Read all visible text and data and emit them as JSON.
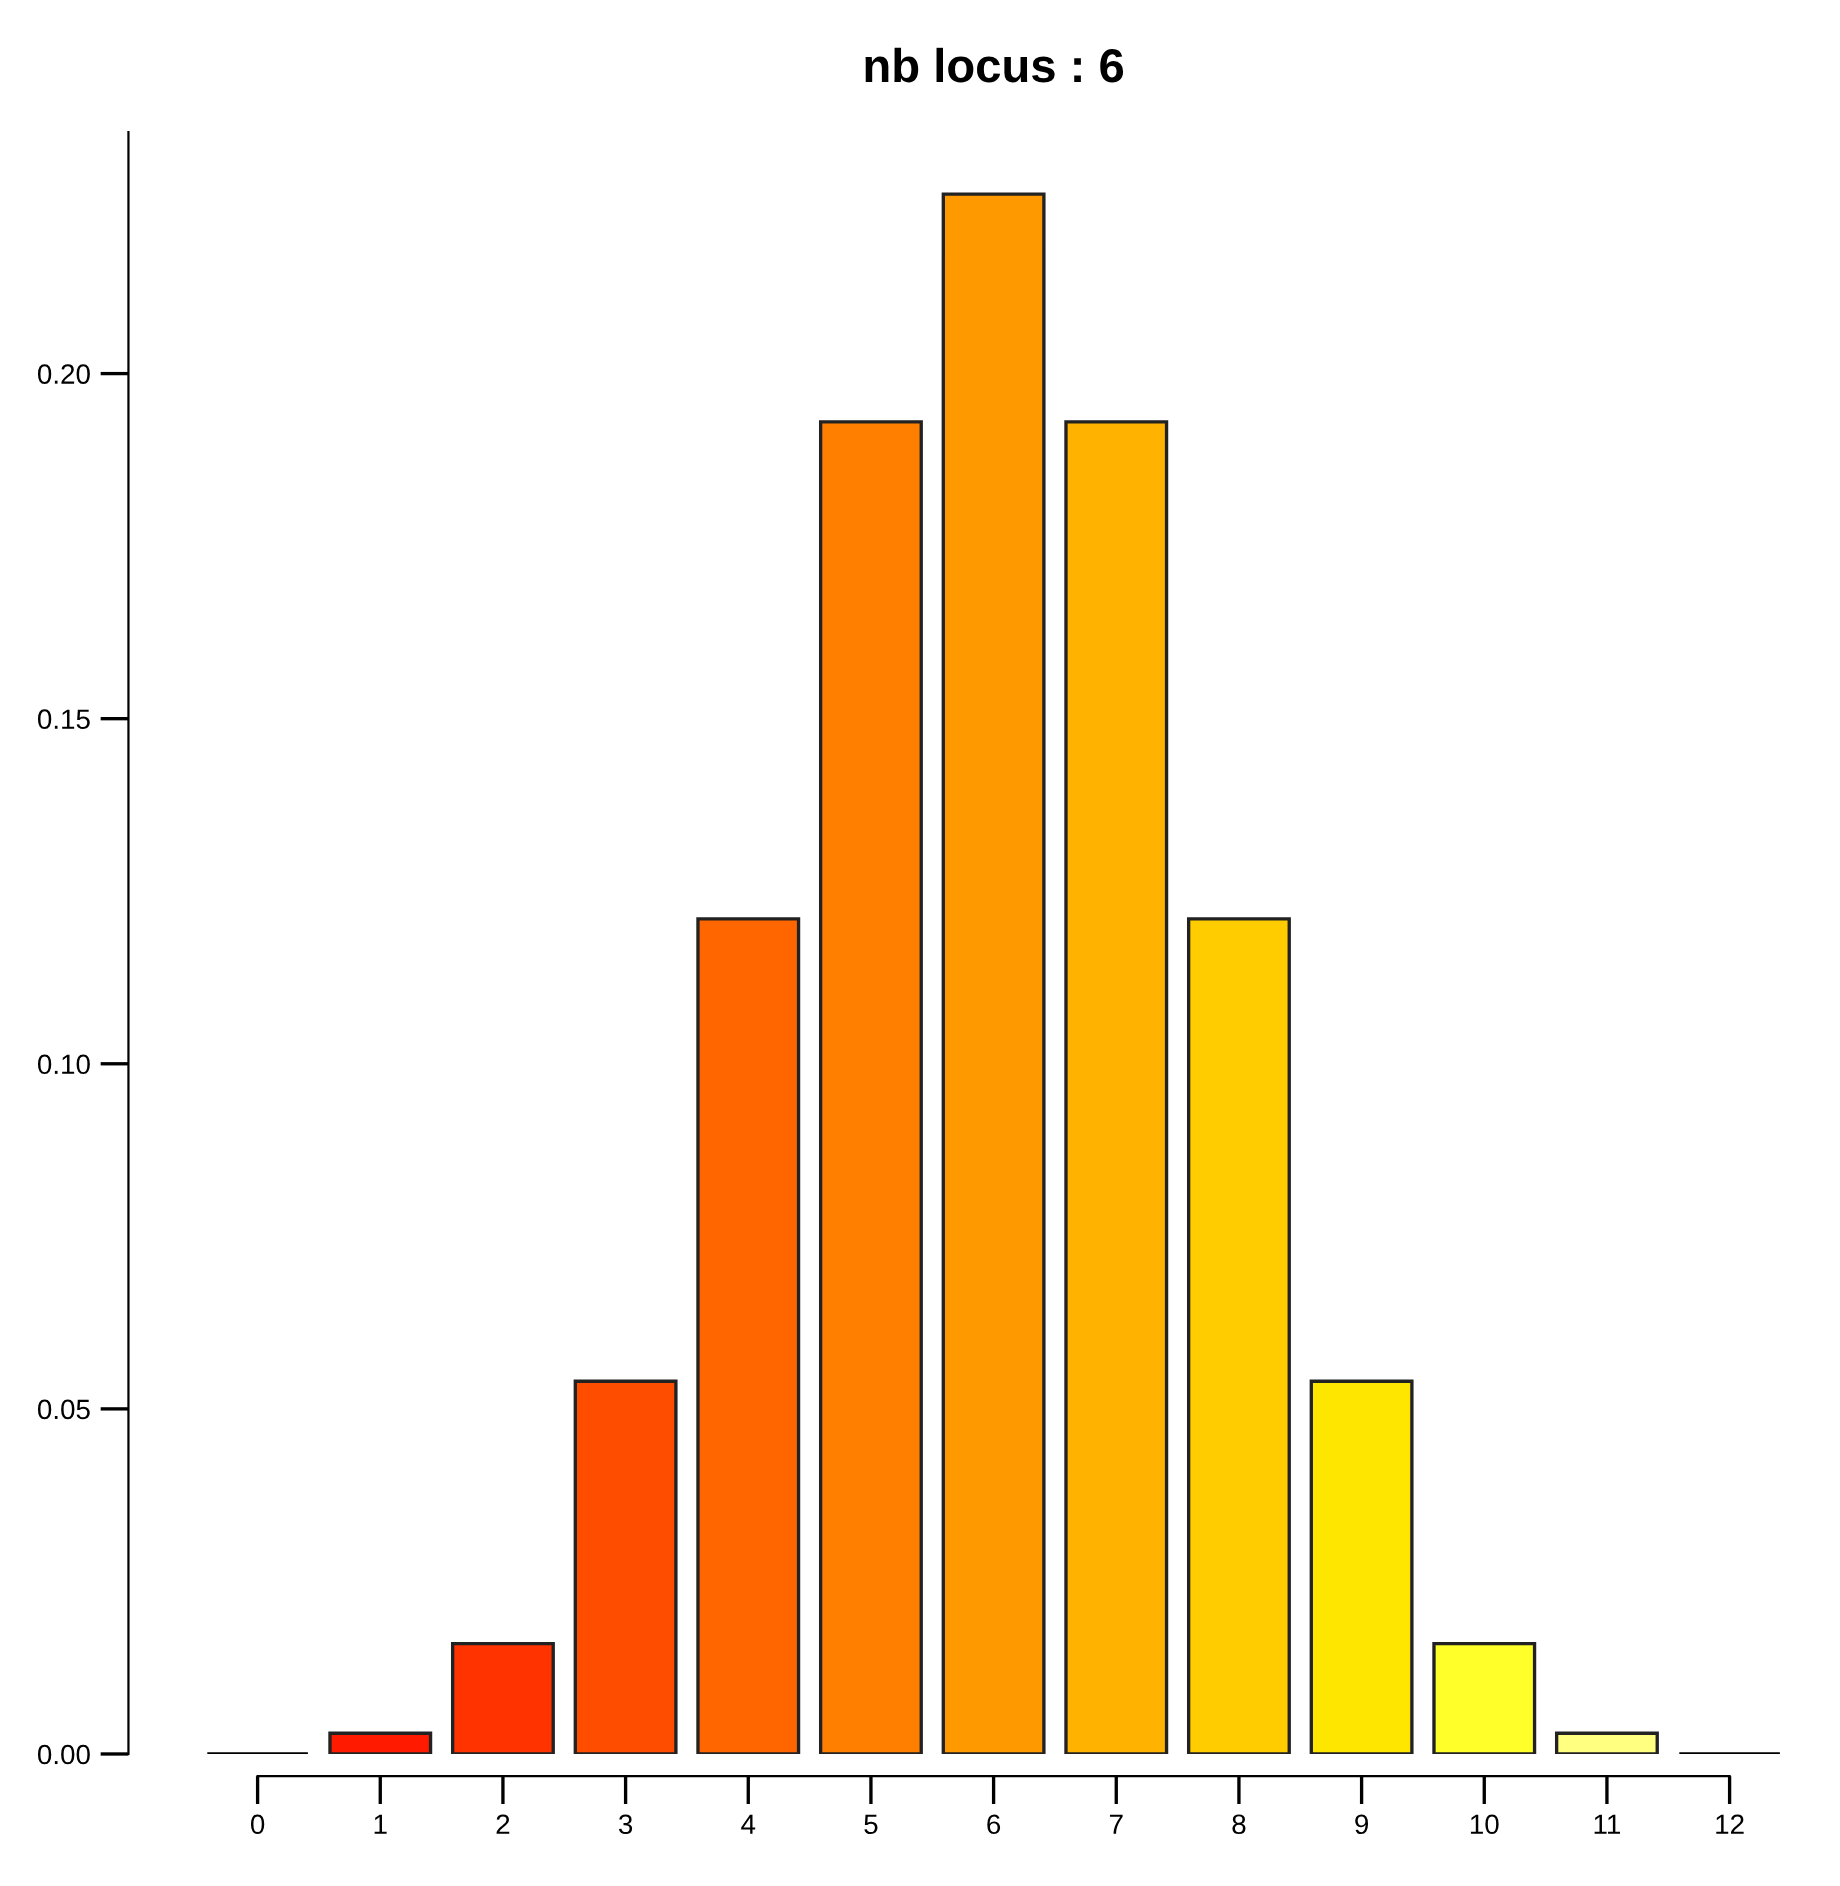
{
  "chart_data": {
    "type": "bar",
    "title": "nb locus : 6",
    "categories": [
      "0",
      "1",
      "2",
      "3",
      "4",
      "5",
      "6",
      "7",
      "8",
      "9",
      "10",
      "11",
      "12"
    ],
    "values": [
      0,
      0.003,
      0.016,
      0.054,
      0.121,
      0.193,
      0.226,
      0.193,
      0.121,
      0.054,
      0.016,
      0.003,
      0
    ],
    "colors": [
      "#000000",
      "#ff1a00",
      "#ff3300",
      "#ff4d00",
      "#ff6600",
      "#ff8000",
      "#ff9900",
      "#ffb300",
      "#ffcc00",
      "#ffe600",
      "#ffff2a",
      "#ffff80",
      "#000000"
    ],
    "ylim": [
      0,
      0.235
    ],
    "yticks": [
      {
        "value": 0,
        "label": "0.00"
      },
      {
        "value": 0.05,
        "label": "0.05"
      },
      {
        "value": 0.1,
        "label": "0.10"
      },
      {
        "value": 0.15,
        "label": "0.15"
      },
      {
        "value": 0.2,
        "label": "0.20"
      }
    ],
    "grid": false,
    "legend": false
  }
}
